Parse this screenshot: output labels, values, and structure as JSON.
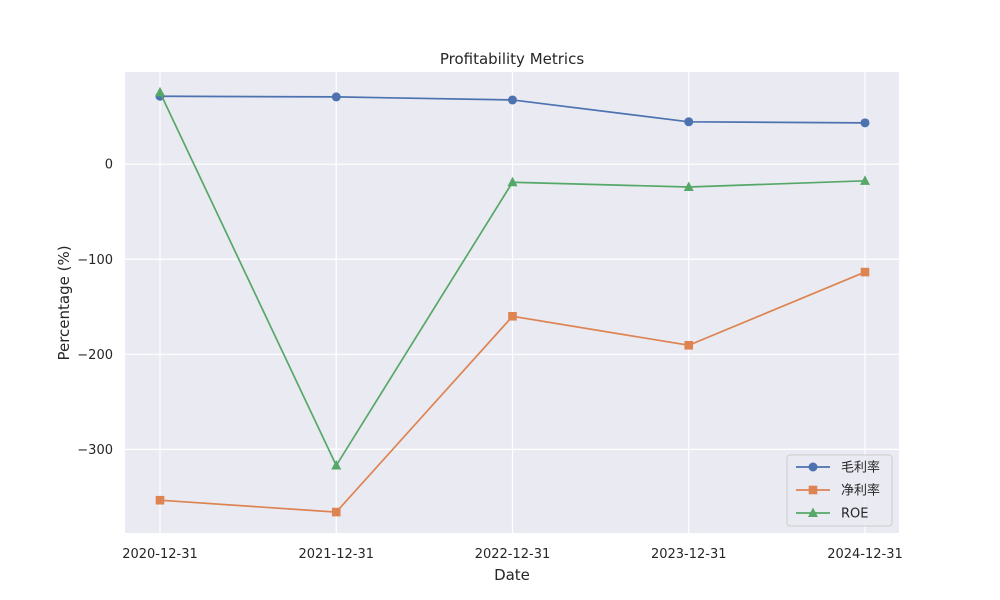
{
  "chart_data": {
    "type": "line",
    "title": "Profitability Metrics",
    "xlabel": "Date",
    "ylabel": "Percentage (%)",
    "categories": [
      "2020-12-31",
      "2021-12-31",
      "2022-12-31",
      "2023-12-31",
      "2024-12-31"
    ],
    "ylim": [
      -388,
      97
    ],
    "yticks": [
      0,
      -100,
      -200,
      -300
    ],
    "ytick_labels": [
      "0",
      "−100",
      "−200",
      "−300"
    ],
    "grid": true,
    "legend_position": "lower-right",
    "colors": {
      "plot_background": "#eaeaf2",
      "grid": "#ffffff"
    },
    "series": [
      {
        "name": "毛利率",
        "color": "#4c72b0",
        "marker": "circle",
        "values": [
          71.5,
          70.8,
          67.6,
          44.6,
          43.5
        ]
      },
      {
        "name": "净利率",
        "color": "#dd8452",
        "marker": "square",
        "values": [
          -353.5,
          -366.0,
          -160.0,
          -190.5,
          -113.5
        ]
      },
      {
        "name": "ROE",
        "color": "#55a868",
        "marker": "triangle",
        "values": [
          75.5,
          -317.0,
          -19.0,
          -24.0,
          -17.5
        ]
      }
    ]
  }
}
